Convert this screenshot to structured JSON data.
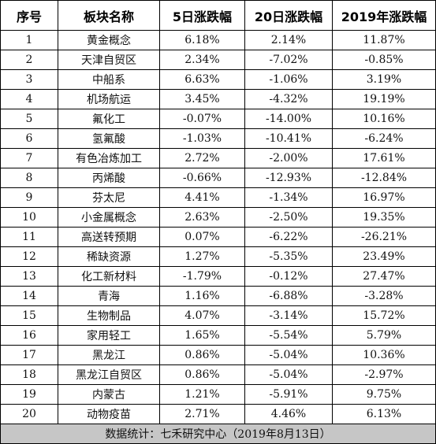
{
  "table": {
    "headers": [
      "序号",
      "板块名称",
      "5日涨跌幅",
      "20日涨跌幅",
      "2019年涨跌幅"
    ],
    "rows": [
      [
        "1",
        "黄金概念",
        "6.18%",
        "2.14%",
        "11.87%"
      ],
      [
        "2",
        "天津自贸区",
        "2.34%",
        "-7.02%",
        "-0.85%"
      ],
      [
        "3",
        "中船系",
        "6.63%",
        "-1.06%",
        "3.19%"
      ],
      [
        "4",
        "机场航运",
        "3.45%",
        "-4.32%",
        "19.19%"
      ],
      [
        "5",
        "氟化工",
        "-0.07%",
        "-14.00%",
        "10.16%"
      ],
      [
        "6",
        "氢氟酸",
        "-1.03%",
        "-10.41%",
        "-6.24%"
      ],
      [
        "7",
        "有色冶炼加工",
        "2.72%",
        "-2.00%",
        "17.61%"
      ],
      [
        "8",
        "丙烯酸",
        "-0.66%",
        "-12.93%",
        "-12.84%"
      ],
      [
        "9",
        "芬太尼",
        "4.41%",
        "-1.34%",
        "16.97%"
      ],
      [
        "10",
        "小金属概念",
        "2.63%",
        "-2.50%",
        "19.35%"
      ],
      [
        "11",
        "高送转预期",
        "0.07%",
        "-6.22%",
        "-26.21%"
      ],
      [
        "12",
        "稀缺资源",
        "1.27%",
        "-5.35%",
        "23.49%"
      ],
      [
        "13",
        "化工新材料",
        "-1.79%",
        "-0.12%",
        "27.47%"
      ],
      [
        "14",
        "青海",
        "1.16%",
        "-6.88%",
        "-3.28%"
      ],
      [
        "15",
        "生物制品",
        "4.07%",
        "-3.14%",
        "15.72%"
      ],
      [
        "16",
        "家用轻工",
        "1.65%",
        "-5.54%",
        "5.79%"
      ],
      [
        "17",
        "黑龙江",
        "0.86%",
        "-5.04%",
        "10.36%"
      ],
      [
        "18",
        "黑龙江自贸区",
        "0.86%",
        "-5.04%",
        "-2.97%"
      ],
      [
        "19",
        "内蒙古",
        "1.21%",
        "-5.91%",
        "9.75%"
      ],
      [
        "20",
        "动物疫苗",
        "2.71%",
        "4.46%",
        "6.13%"
      ]
    ],
    "footer": "数据统计：七禾研究中心（2019年8月13日）"
  }
}
